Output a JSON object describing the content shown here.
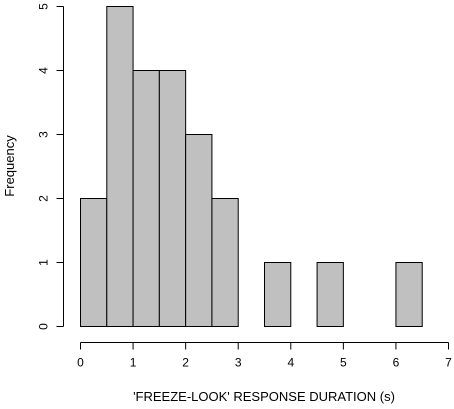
{
  "chart_data": {
    "type": "bar",
    "title": "",
    "xlabel": "'FREEZE-LOOK' RESPONSE DURATION (s)",
    "ylabel": "Frequency",
    "xlim": [
      0,
      7
    ],
    "ylim": [
      0,
      5
    ],
    "x_ticks": [
      0,
      1,
      2,
      3,
      4,
      5,
      6,
      7
    ],
    "y_ticks": [
      0,
      1,
      2,
      3,
      4,
      5
    ],
    "bin_width": 0.5,
    "bins": [
      {
        "start": 0.0,
        "end": 0.5,
        "count": 2
      },
      {
        "start": 0.5,
        "end": 1.0,
        "count": 5
      },
      {
        "start": 1.0,
        "end": 1.5,
        "count": 4
      },
      {
        "start": 1.5,
        "end": 2.0,
        "count": 4
      },
      {
        "start": 2.0,
        "end": 2.5,
        "count": 3
      },
      {
        "start": 2.5,
        "end": 3.0,
        "count": 2
      },
      {
        "start": 3.0,
        "end": 3.5,
        "count": 0
      },
      {
        "start": 3.5,
        "end": 4.0,
        "count": 1
      },
      {
        "start": 4.0,
        "end": 4.5,
        "count": 0
      },
      {
        "start": 4.5,
        "end": 5.0,
        "count": 1
      },
      {
        "start": 5.0,
        "end": 5.5,
        "count": 0
      },
      {
        "start": 5.5,
        "end": 6.0,
        "count": 0
      },
      {
        "start": 6.0,
        "end": 6.5,
        "count": 1
      }
    ],
    "bar_color": "#c0c0c0",
    "grid": false
  }
}
